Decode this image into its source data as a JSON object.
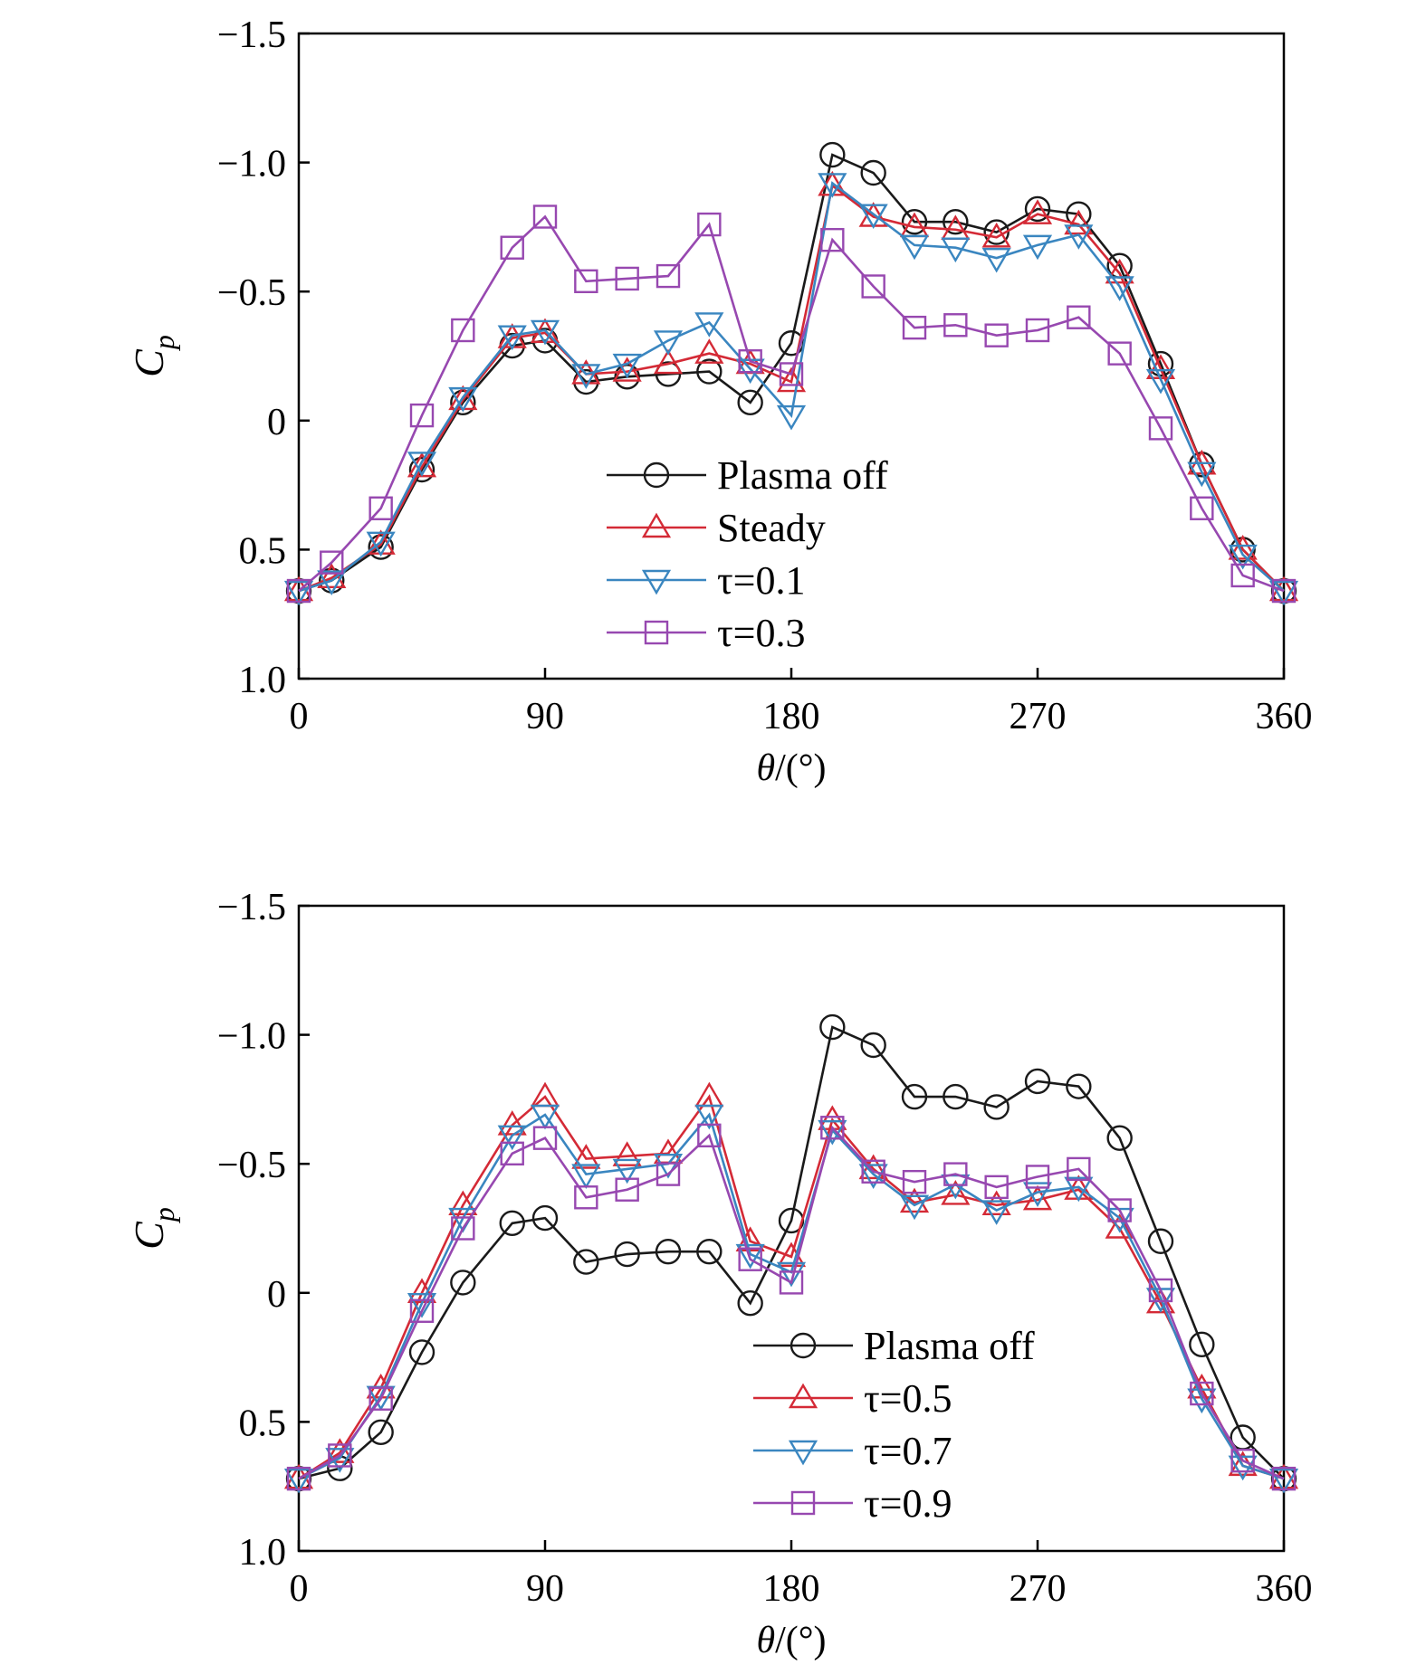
{
  "figure": {
    "colors": {
      "plasma_off": "#1a1a1a",
      "steady": "#d42a36",
      "tau01": "#3a86c0",
      "tau03": "#9748b0",
      "tau05": "#d42a36",
      "tau07": "#3a86c0",
      "tau09": "#9748b0",
      "axis": "#000000"
    }
  },
  "chart_data": [
    {
      "type": "line",
      "xlabel_symbol": "θ",
      "xlabel_unit": "/(°)",
      "ylabel_main": "C",
      "ylabel_sub": "p",
      "xlim": [
        0,
        360
      ],
      "ylim": [
        1.0,
        -1.5
      ],
      "y_inverted": true,
      "x_ticks": [
        0,
        90,
        180,
        270,
        360
      ],
      "x_tick_labels": [
        "0",
        "90",
        "180",
        "270",
        "360"
      ],
      "y_ticks": [
        -1.5,
        -1.0,
        -0.5,
        0,
        0.5,
        1.0
      ],
      "y_tick_labels": [
        "−1.5",
        "−1.0",
        "−0.5",
        "0",
        "0.5",
        "1.0"
      ],
      "legend_position": "center",
      "x": [
        0,
        12,
        30,
        45,
        60,
        78,
        90,
        105,
        120,
        135,
        150,
        165,
        180,
        195,
        210,
        225,
        240,
        255,
        270,
        285,
        300,
        315,
        330,
        345,
        360
      ],
      "series": [
        {
          "name": "Plasma off",
          "label": "Plasma off",
          "marker": "circle",
          "color": "plasma_off",
          "values": [
            0.66,
            0.62,
            0.49,
            0.19,
            -0.07,
            -0.29,
            -0.31,
            -0.15,
            -0.17,
            -0.18,
            -0.19,
            -0.07,
            -0.3,
            -1.03,
            -0.96,
            -0.77,
            -0.77,
            -0.73,
            -0.82,
            -0.8,
            -0.6,
            -0.22,
            0.17,
            0.5,
            0.66
          ]
        },
        {
          "name": "Steady",
          "label": "Steady",
          "marker": "triangle-up",
          "color": "steady",
          "values": [
            0.66,
            0.61,
            0.48,
            0.18,
            -0.08,
            -0.32,
            -0.34,
            -0.18,
            -0.19,
            -0.22,
            -0.26,
            -0.22,
            -0.15,
            -0.91,
            -0.79,
            -0.75,
            -0.74,
            -0.71,
            -0.8,
            -0.76,
            -0.57,
            -0.2,
            0.17,
            0.5,
            0.66
          ]
        },
        {
          "name": "τ=0.1",
          "label": "τ=0.1",
          "marker": "triangle-down",
          "color": "tau01",
          "values": [
            0.66,
            0.62,
            0.47,
            0.16,
            -0.09,
            -0.33,
            -0.35,
            -0.18,
            -0.22,
            -0.31,
            -0.38,
            -0.2,
            -0.02,
            -0.92,
            -0.8,
            -0.68,
            -0.67,
            -0.63,
            -0.68,
            -0.72,
            -0.52,
            -0.16,
            0.2,
            0.52,
            0.66
          ]
        },
        {
          "name": "τ=0.3",
          "label": "τ=0.3",
          "marker": "square",
          "color": "tau03",
          "values": [
            0.66,
            0.55,
            0.34,
            -0.02,
            -0.35,
            -0.67,
            -0.79,
            -0.54,
            -0.55,
            -0.56,
            -0.76,
            -0.23,
            -0.18,
            -0.7,
            -0.52,
            -0.36,
            -0.37,
            -0.33,
            -0.35,
            -0.4,
            -0.26,
            0.03,
            0.34,
            0.6,
            0.66
          ]
        }
      ],
      "legend": {
        "entries": [
          "Plasma off",
          "Steady",
          "τ=0.1",
          "τ=0.3"
        ]
      }
    },
    {
      "type": "line",
      "xlabel_symbol": "θ",
      "xlabel_unit": "/(°)",
      "ylabel_main": "C",
      "ylabel_sub": "p",
      "xlim": [
        0,
        360
      ],
      "ylim": [
        1.0,
        -1.5
      ],
      "y_inverted": true,
      "x_ticks": [
        0,
        90,
        180,
        270,
        360
      ],
      "x_tick_labels": [
        "0",
        "90",
        "180",
        "270",
        "360"
      ],
      "y_ticks": [
        -1.5,
        -1.0,
        -0.5,
        0,
        0.5,
        1.0
      ],
      "y_tick_labels": [
        "−1.5",
        "−1.0",
        "−0.5",
        "0",
        "0.5",
        "1.0"
      ],
      "legend_position": "lower-right",
      "x": [
        0,
        15,
        30,
        45,
        60,
        78,
        90,
        105,
        120,
        135,
        150,
        165,
        180,
        195,
        210,
        225,
        240,
        255,
        270,
        285,
        300,
        315,
        330,
        345,
        360
      ],
      "series": [
        {
          "name": "Plasma off",
          "label": "Plasma off",
          "marker": "circle",
          "color": "plasma_off",
          "values": [
            0.72,
            0.68,
            0.54,
            0.23,
            -0.04,
            -0.27,
            -0.29,
            -0.12,
            -0.15,
            -0.16,
            -0.16,
            0.04,
            -0.28,
            -1.03,
            -0.96,
            -0.76,
            -0.76,
            -0.72,
            -0.82,
            -0.8,
            -0.6,
            -0.2,
            0.2,
            0.56,
            0.72
          ]
        },
        {
          "name": "τ=0.5",
          "label": "τ=0.5",
          "marker": "triangle-up",
          "color": "tau05",
          "values": [
            0.72,
            0.62,
            0.37,
            0.0,
            -0.34,
            -0.65,
            -0.76,
            -0.52,
            -0.53,
            -0.54,
            -0.76,
            -0.2,
            -0.14,
            -0.67,
            -0.48,
            -0.35,
            -0.38,
            -0.34,
            -0.36,
            -0.4,
            -0.25,
            0.04,
            0.37,
            0.67,
            0.72
          ]
        },
        {
          "name": "τ=0.7",
          "label": "τ=0.7",
          "marker": "triangle-down",
          "color": "tau07",
          "values": [
            0.72,
            0.64,
            0.4,
            0.04,
            -0.29,
            -0.61,
            -0.69,
            -0.46,
            -0.48,
            -0.5,
            -0.69,
            -0.15,
            -0.08,
            -0.63,
            -0.46,
            -0.34,
            -0.42,
            -0.32,
            -0.39,
            -0.41,
            -0.29,
            0.02,
            0.41,
            0.67,
            0.72
          ]
        },
        {
          "name": "τ=0.9",
          "label": "τ=0.9",
          "marker": "square",
          "color": "tau09",
          "values": [
            0.72,
            0.63,
            0.41,
            0.07,
            -0.25,
            -0.54,
            -0.6,
            -0.37,
            -0.4,
            -0.46,
            -0.61,
            -0.13,
            -0.04,
            -0.64,
            -0.47,
            -0.43,
            -0.46,
            -0.41,
            -0.45,
            -0.48,
            -0.32,
            -0.01,
            0.39,
            0.65,
            0.72
          ]
        }
      ],
      "legend": {
        "entries": [
          "Plasma off",
          "τ=0.5",
          "τ=0.7",
          "τ=0.9"
        ]
      }
    }
  ]
}
